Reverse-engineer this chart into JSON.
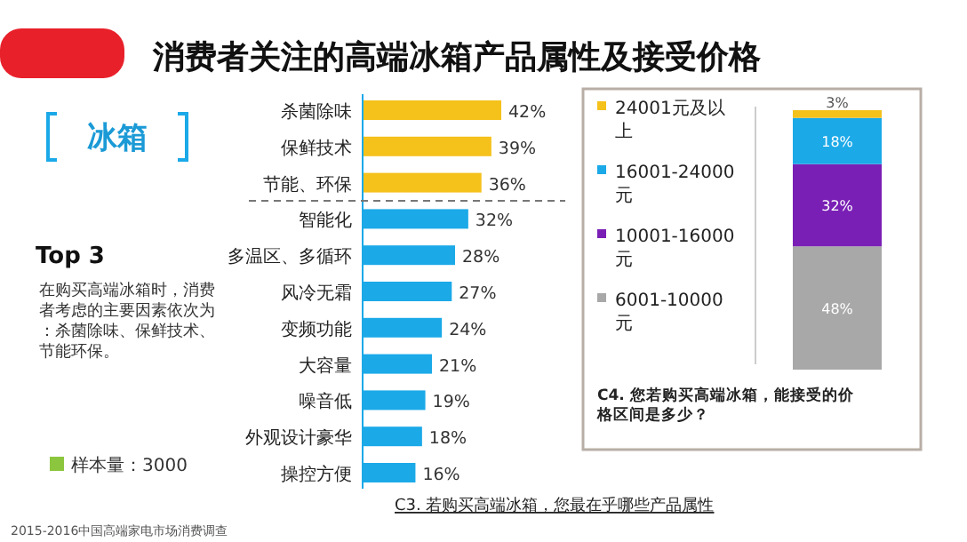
{
  "chart_data": [
    {
      "type": "bar",
      "orientation": "horizontal",
      "title": "消费者关注的高端冰箱产品属性及接受价格",
      "categories": [
        "杀菌除味",
        "保鲜技术",
        "节能、环保",
        "智能化",
        "多温区、多循环",
        "风冷无霜",
        "变频功能",
        "大容量",
        "噪音低",
        "外观设计豪华",
        "操控方便"
      ],
      "values": [
        42,
        39,
        36,
        32,
        28,
        27,
        24,
        21,
        19,
        18,
        16
      ],
      "colors": [
        "#f5c11b",
        "#f5c11b",
        "#f5c11b",
        "#1ba9e8",
        "#1ba9e8",
        "#1ba9e8",
        "#1ba9e8",
        "#1ba9e8",
        "#1ba9e8",
        "#1ba9e8",
        "#1ba9e8"
      ],
      "value_labels": [
        "42%",
        "39%",
        "36%",
        "32%",
        "28%",
        "27%",
        "24%",
        "21%",
        "19%",
        "18%",
        "16%"
      ],
      "annotations": [
        "冰箱",
        "Top 3",
        "在购买高端冰箱时，消费者考虑的主要因素依次为：杀菌除味、保鲜技术、节能环保。",
        "样本量：3000",
        "C3. 若购买高端冰箱，您最在乎哪些产品属性",
        "2015-2016中国高端家电市场消费调查"
      ]
    },
    {
      "type": "bar",
      "stacked": true,
      "categories": [
        null
      ],
      "legend": "left",
      "series": [
        {
          "name": "6001-10000元",
          "color": "#a8a8a8",
          "values": [
            48
          ],
          "value_labels": [
            "48%"
          ]
        },
        {
          "name": "10001-16000元",
          "color": "#7a1fb5",
          "values": [
            32
          ],
          "value_labels": [
            "32%"
          ]
        },
        {
          "name": "16001-24000元",
          "color": "#1ba9e8",
          "values": [
            18
          ],
          "value_labels": [
            "18%"
          ]
        },
        {
          "name": "24001元及以上",
          "color": "#f5c11b",
          "values": [
            3
          ],
          "value_labels": [
            "3%"
          ]
        }
      ],
      "annotations": [
        "C4. 您若购买高端冰箱，能接受的价格区间是多少？"
      ]
    }
  ]
}
